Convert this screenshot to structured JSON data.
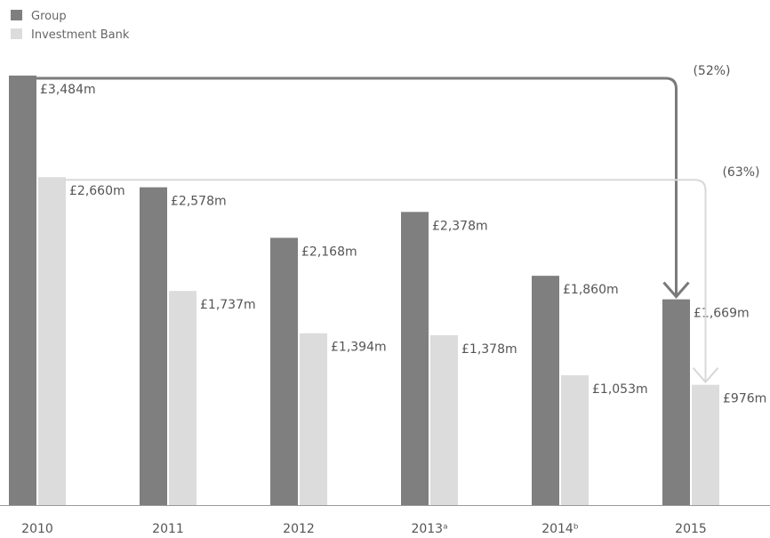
{
  "chart_data": {
    "type": "bar",
    "categories": [
      "2010",
      "2011",
      "2012",
      "2013ᵃ",
      "2014ᵇ",
      "2015"
    ],
    "series": [
      {
        "name": "Group",
        "color": "#7f7f7f",
        "values": [
          3484,
          2578,
          2168,
          2378,
          1860,
          1669
        ],
        "labels": [
          "£3,484m",
          "£2,578m",
          "£2,168m",
          "£2,378m",
          "£1,860m",
          "£1,669m"
        ]
      },
      {
        "name": "Investment Bank",
        "color": "#dcdcdc",
        "values": [
          2660,
          1737,
          1394,
          1378,
          1053,
          976
        ],
        "labels": [
          "£2,660m",
          "£1,737m",
          "£1,394m",
          "£1,378m",
          "£1,053m",
          "£976m"
        ]
      }
    ],
    "ylim": [
      0,
      3484
    ],
    "xlabel": "",
    "ylabel": "",
    "title": "",
    "grid": false,
    "legend": "top-left",
    "annotations": [
      {
        "series": "Group",
        "from": "2010",
        "to": "2015",
        "text": "(52%)"
      },
      {
        "series": "Investment Bank",
        "from": "2010",
        "to": "2015",
        "text": "(63%)"
      }
    ]
  }
}
